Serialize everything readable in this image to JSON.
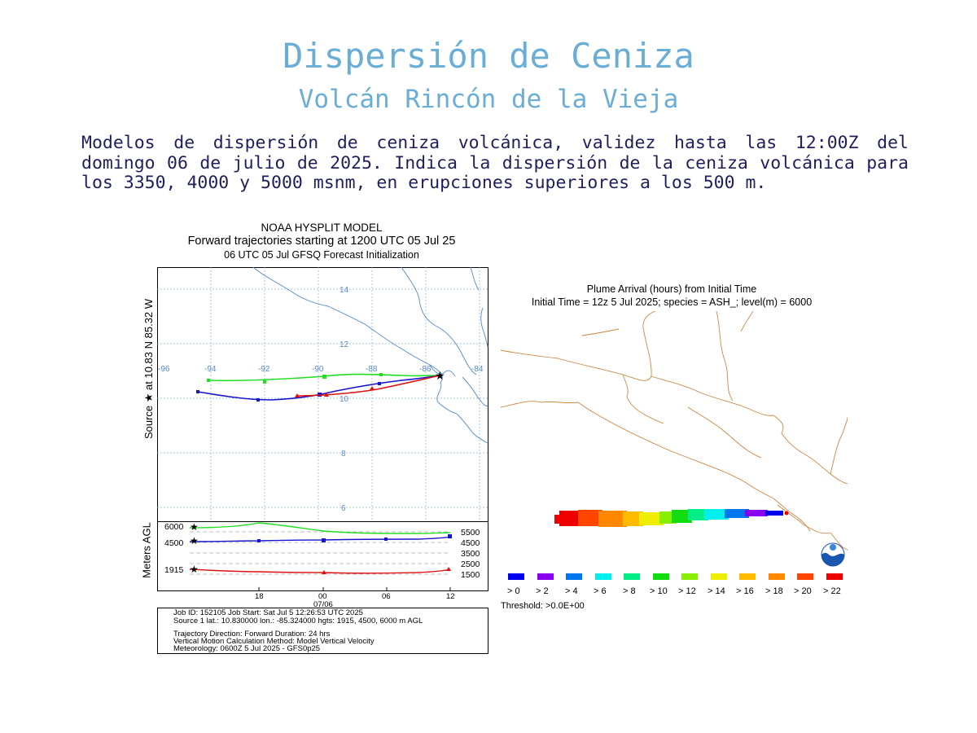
{
  "title": "Dispersión de Ceniza",
  "subtitle": "Volcán Rincón de la Vieja",
  "description": "Modelos de dispersión de ceniza volcánica, validez hasta las 12:00Z del domingo 06 de julio de 2025. Indica la dispersión de la ceniza volcánica para los 3350, 4000 y 5000 msnm, en erupciones superiores a los 500 m.",
  "trajectory_figure": {
    "title_line1": "NOAA HYSPLIT MODEL",
    "title_line2": "Forward trajectories starting at 1200 UTC 05 Jul 25",
    "title_line3": "06 UTC 05 Jul    GFSQ  Forecast Initialization",
    "source_label": "Source ★  at   10.83 N   85.32 W",
    "height_axis_label": "Meters AGL",
    "lat_ticks": [
      "14",
      "12",
      "10",
      "8",
      "6"
    ],
    "lon_ticks": [
      "-96",
      "-94",
      "-92",
      "-90",
      "-88",
      "-86",
      "-84"
    ],
    "left_height_labels": [
      "6000",
      "4500",
      "1915"
    ],
    "right_height_labels": [
      "5500",
      "4500",
      "3500",
      "2500",
      "1500"
    ],
    "time_ticks": [
      "18",
      "00",
      "06",
      "12"
    ],
    "date_label": "07/06",
    "info_lines": [
      "Job ID: 152105               Job Start: Sat Jul  5 12:26:53 UTC 2025",
      "Source 1 lat.: 10.830000  lon.: -85.324000  hgts: 1915, 4500, 6000 m AGL",
      "",
      "Trajectory Direction: Forward      Duration: 24 hrs",
      "Vertical Motion Calculation Method:      Model Vertical Velocity",
      "Meteorology: 0600Z 5 Jul 2025 - GFS0p25"
    ],
    "series_colors": {
      "high": "#22dd22",
      "mid": "#1515cc",
      "low": "#dd1111"
    }
  },
  "plume_figure": {
    "title_line1": "Plume Arrival (hours) from Initial Time",
    "title_line2": "Initial Time = 12z  5 Jul 2025;  species = ASH_;  level(m) =  6000",
    "legend": [
      {
        "label": "> 0",
        "color": "#0000ee"
      },
      {
        "label": "> 2",
        "color": "#8800ee"
      },
      {
        "label": "> 4",
        "color": "#0077ee"
      },
      {
        "label": "> 6",
        "color": "#00eeee"
      },
      {
        "label": "> 8",
        "color": "#00ee88"
      },
      {
        "label": "> 10",
        "color": "#11dd11"
      },
      {
        "label": "> 12",
        "color": "#88ee00"
      },
      {
        "label": "> 14",
        "color": "#eeee00"
      },
      {
        "label": "> 16",
        "color": "#ffbb00"
      },
      {
        "label": "> 18",
        "color": "#ff8800"
      },
      {
        "label": "> 20",
        "color": "#ff4400"
      },
      {
        "label": "> 22",
        "color": "#ee0000"
      }
    ],
    "threshold": "Threshold: >0.0E+00",
    "coast_color": "#cc8844"
  }
}
